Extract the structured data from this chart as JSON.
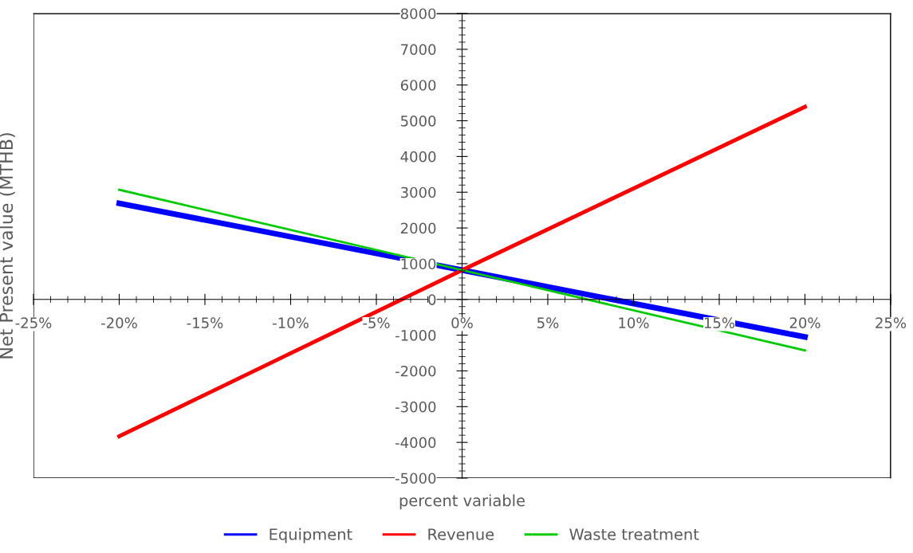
{
  "chart_data": {
    "type": "line",
    "xlabel": "percent variable",
    "ylabel": "Net Present value (MTHB)",
    "x": [
      -20,
      0,
      20
    ],
    "series": [
      {
        "name": "Equipment",
        "color": "#0000ff",
        "values": [
          2690,
          820,
          -1050
        ]
      },
      {
        "name": "Revenue",
        "color": "#ff0000",
        "values": [
          -3830,
          820,
          5390
        ]
      },
      {
        "name": "Waste treatment",
        "color": "#00cc00",
        "values": [
          3070,
          820,
          -1430
        ]
      }
    ],
    "xlim": [
      -25,
      25
    ],
    "ylim": [
      -5000,
      8000
    ],
    "xticks": [
      {
        "value": -25,
        "label": "-25%"
      },
      {
        "value": -20,
        "label": "-20%"
      },
      {
        "value": -15,
        "label": "-15%"
      },
      {
        "value": -10,
        "label": "-10%"
      },
      {
        "value": -5,
        "label": "-5%"
      },
      {
        "value": 0,
        "label": "0%"
      },
      {
        "value": 5,
        "label": "5%"
      },
      {
        "value": 10,
        "label": "10%"
      },
      {
        "value": 15,
        "label": "15%"
      },
      {
        "value": 20,
        "label": "20%"
      },
      {
        "value": 25,
        "label": "25%"
      }
    ],
    "yticks": [
      -5000,
      -4000,
      -3000,
      -2000,
      -1000,
      0,
      1000,
      2000,
      3000,
      4000,
      5000,
      6000,
      7000,
      8000
    ],
    "grid": false,
    "legend": "bottom",
    "marker": "none",
    "line_style": "solid"
  }
}
